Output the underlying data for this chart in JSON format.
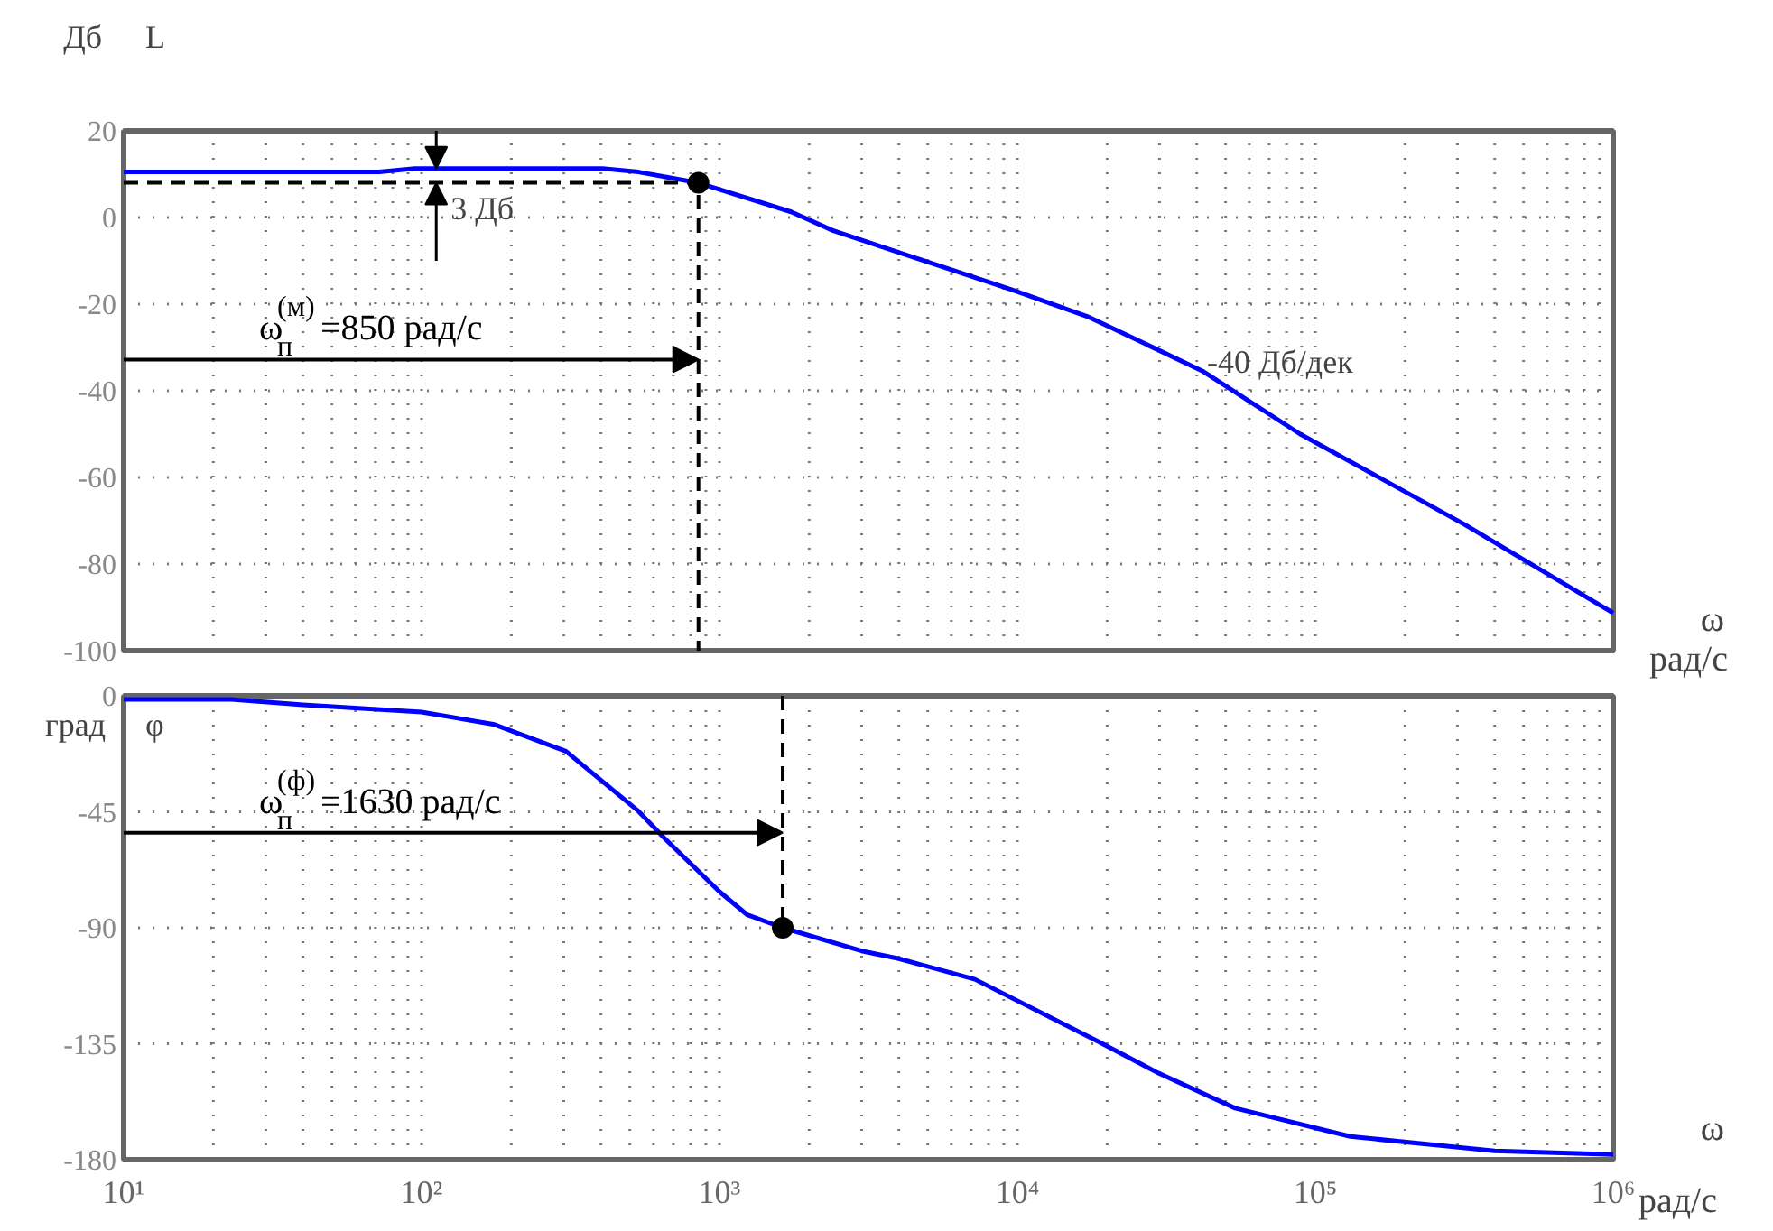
{
  "chart_data": [
    {
      "type": "line",
      "xlabel": "ω",
      "ylabel": "Дб",
      "log": "x",
      "grid": true,
      "tick_labels": "y",
      "xlim": [
        10,
        1000000
      ],
      "ylim": [
        -100,
        20
      ],
      "xticks": [
        10,
        100,
        1000,
        10000,
        100000,
        1000000
      ],
      "yticks": [
        -100,
        -80,
        -60,
        -40,
        -20,
        0,
        20
      ],
      "series": [
        {
          "color": "#0000ff",
          "x": [
            10,
            72,
            95,
            405,
            535,
            850,
            1740,
            2400,
            9600,
            17400,
            41700,
            89000,
            316000,
            1000000
          ],
          "values": [
            10.5,
            10.5,
            11.3,
            11.3,
            10.5,
            8,
            1.3,
            -3,
            -16.7,
            -23,
            -35.4,
            -50,
            -70.8,
            -91.3
          ]
        },
        {
          "color": "#000000",
          "line_style": "dashed",
          "x": [
            10,
            850,
            850
          ],
          "values": [
            8,
            8,
            -100
          ]
        },
        {
          "type": "scatter",
          "marker": "circle",
          "color": "#000000",
          "x": [
            850
          ],
          "values": [
            8
          ]
        }
      ],
      "annotations": [
        "L",
        "рад/с",
        "ω$^{(м)}$$_{п}$=850 рад/с",
        "-40 Дб/дек",
        {
          "text": "3 Дб",
          "x": 112,
          "y": 8
        }
      ]
    },
    {
      "type": "line",
      "xlabel": "ω",
      "ylabel": "град",
      "log": "x",
      "grid": true,
      "xlim": [
        10,
        1000000
      ],
      "ylim": [
        -180,
        0
      ],
      "xticks": [
        {
          "value": 10,
          "label": "10¹"
        },
        {
          "value": 100,
          "label": "10²"
        },
        {
          "value": 1000,
          "label": "10³"
        },
        {
          "value": 10000,
          "label": "10⁴"
        },
        {
          "value": 100000,
          "label": "10⁵"
        },
        {
          "value": 1000000,
          "label": "10⁶"
        }
      ],
      "yticks": [
        -180,
        -135,
        -90,
        -45,
        0
      ],
      "series": [
        {
          "color": "#0000ff",
          "x": [
            10,
            23,
            40,
            100,
            174,
            305,
            535,
            650,
            1000,
            1240,
            1630,
            3000,
            4000,
            7200,
            18600,
            29300,
            53800,
            131000,
            400000,
            1000000
          ],
          "values": [
            -1.4,
            -1.4,
            -3.5,
            -6.3,
            -11,
            -21.5,
            -44.8,
            -55,
            -76,
            -85,
            -90,
            -99,
            -102,
            -110,
            -134,
            -146,
            -160,
            -171,
            -176.6,
            -178
          ]
        },
        {
          "color": "#000000",
          "line_style": "dashed",
          "x": [
            1630,
            1630
          ],
          "values": [
            0,
            -90
          ]
        },
        {
          "type": "scatter",
          "marker": "circle",
          "color": "#000000",
          "x": [
            1630
          ],
          "values": [
            -90
          ]
        }
      ],
      "annotations": [
        "φ",
        "рад/с",
        "ω$^{(ф)}$$_{п}$=1630 рад/с"
      ]
    }
  ]
}
